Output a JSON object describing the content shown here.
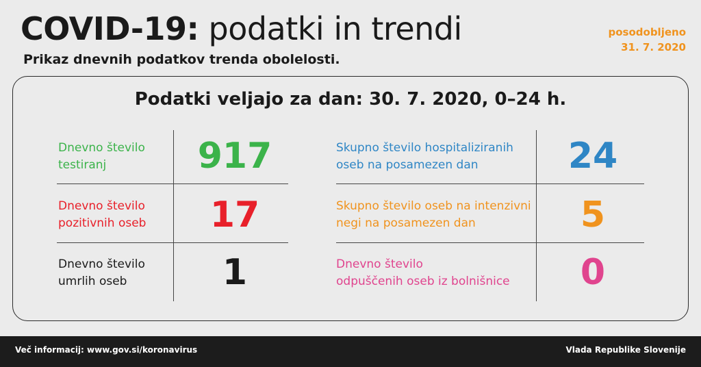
{
  "header": {
    "title_bold": "COVID-19:",
    "title_rest": " podatki in trendi",
    "subtitle": "Prikaz dnevnih podatkov trenda obolelosti.",
    "updated_line1": "posodobljeno",
    "updated_line2": "31. 7. 2020"
  },
  "panel": {
    "title": "Podatki veljajo za dan: 30. 7. 2020, 0–24 h.",
    "left": [
      {
        "label1": "Dnevno število",
        "label2": "testiranj",
        "value": "917",
        "color": "#3bb34a"
      },
      {
        "label1": "Dnevno število",
        "label2": "pozitivnih oseb",
        "value": "17",
        "color": "#e8202a"
      },
      {
        "label1": "Dnevno število",
        "label2": "umrlih oseb",
        "value": "1",
        "color": "#1a1a1a"
      }
    ],
    "right": [
      {
        "label1": "Skupno število hospitaliziranih",
        "label2": "oseb na posamezen dan",
        "value": "24",
        "color": "#2f86c5"
      },
      {
        "label1": "Skupno število oseb na intenzivni",
        "label2": "negi na posamezen dan",
        "value": "5",
        "color": "#f0931e"
      },
      {
        "label1": "Dnevno število",
        "label2": "odpuščenih oseb iz bolnišnice",
        "value": "0",
        "color": "#e0448e"
      }
    ]
  },
  "footer": {
    "left": "Več informacij: www.gov.si/koronavirus",
    "right": "Vlada Republike Slovenije"
  }
}
